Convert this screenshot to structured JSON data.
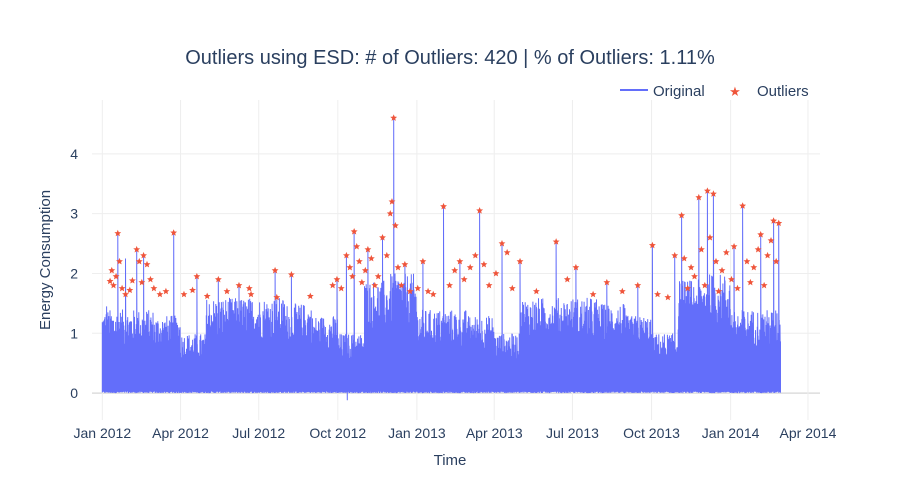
{
  "chart_data": {
    "type": "line",
    "title": "Outliers using ESD: # of Outliers: 420 | % of Outliers: 1.11%",
    "xlabel": "Time",
    "ylabel": "Energy Consumption",
    "x_ticks": [
      "Jan 2012",
      "Apr 2012",
      "Jul 2012",
      "Oct 2012",
      "Jan 2013",
      "Apr 2013",
      "Jul 2013",
      "Oct 2013",
      "Jan 2014",
      "Apr 2014"
    ],
    "x_tick_dates": [
      "2012-01-01",
      "2012-04-01",
      "2012-07-01",
      "2012-10-01",
      "2013-01-01",
      "2013-04-01",
      "2013-07-01",
      "2013-10-01",
      "2014-01-01",
      "2014-04-01"
    ],
    "xlim": [
      "2011-12-20",
      "2014-04-15"
    ],
    "y_ticks": [
      0,
      1,
      2,
      3,
      4
    ],
    "ylim": [
      -0.45,
      4.9
    ],
    "grid": true,
    "legend_position": "top-right",
    "colors": {
      "original": "#636efa",
      "outliers": "#ef553b",
      "text": "#2a3f5f",
      "grid": "#eeeeee"
    },
    "series": [
      {
        "name": "Original",
        "mode": "lines",
        "x_range": [
          "2012-01-01",
          "2014-02-28"
        ],
        "typical_max": [
          1.4,
          1.4,
          1.3,
          1.0,
          1.6,
          1.6,
          1.6,
          1.5,
          1.3,
          1.0,
          1.9,
          2.0
        ],
        "typical_min": 0.0,
        "min_dip": {
          "x": "2012-10-12",
          "y": -0.12
        },
        "peaks": [
          {
            "x": "2012-01-06",
            "y": 1.45
          },
          {
            "x": "2012-01-19",
            "y": 2.67
          },
          {
            "x": "2012-01-28",
            "y": 2.25
          },
          {
            "x": "2012-02-10",
            "y": 2.4
          },
          {
            "x": "2012-02-18",
            "y": 2.3
          },
          {
            "x": "2012-03-24",
            "y": 2.68
          },
          {
            "x": "2012-04-20",
            "y": 1.95
          },
          {
            "x": "2012-05-15",
            "y": 1.9
          },
          {
            "x": "2012-06-08",
            "y": 1.8
          },
          {
            "x": "2012-07-20",
            "y": 2.05
          },
          {
            "x": "2012-08-08",
            "y": 1.98
          },
          {
            "x": "2012-09-30",
            "y": 1.9
          },
          {
            "x": "2012-10-11",
            "y": 2.3
          },
          {
            "x": "2012-10-20",
            "y": 2.7
          },
          {
            "x": "2012-11-05",
            "y": 2.4
          },
          {
            "x": "2012-11-22",
            "y": 2.6
          },
          {
            "x": "2012-12-05",
            "y": 4.6
          },
          {
            "x": "2012-12-18",
            "y": 2.15
          },
          {
            "x": "2013-01-08",
            "y": 2.2
          },
          {
            "x": "2013-02-01",
            "y": 3.12
          },
          {
            "x": "2013-02-20",
            "y": 2.2
          },
          {
            "x": "2013-03-15",
            "y": 3.05
          },
          {
            "x": "2013-04-10",
            "y": 2.5
          },
          {
            "x": "2013-05-01",
            "y": 2.2
          },
          {
            "x": "2013-06-12",
            "y": 2.53
          },
          {
            "x": "2013-07-05",
            "y": 2.1
          },
          {
            "x": "2013-08-10",
            "y": 1.85
          },
          {
            "x": "2013-09-15",
            "y": 1.8
          },
          {
            "x": "2013-10-02",
            "y": 2.47
          },
          {
            "x": "2013-10-28",
            "y": 2.3
          },
          {
            "x": "2013-11-05",
            "y": 2.97
          },
          {
            "x": "2013-11-25",
            "y": 3.27
          },
          {
            "x": "2013-12-05",
            "y": 3.38
          },
          {
            "x": "2013-12-12",
            "y": 3.33
          },
          {
            "x": "2014-01-05",
            "y": 2.45
          },
          {
            "x": "2014-01-15",
            "y": 3.13
          },
          {
            "x": "2014-02-05",
            "y": 2.65
          },
          {
            "x": "2014-02-20",
            "y": 2.88
          },
          {
            "x": "2014-02-26",
            "y": 2.84
          }
        ]
      },
      {
        "name": "Outliers",
        "mode": "markers",
        "marker": "star",
        "points": [
          {
            "x": "2012-01-10",
            "y": 1.87
          },
          {
            "x": "2012-01-12",
            "y": 2.05
          },
          {
            "x": "2012-01-14",
            "y": 1.8
          },
          {
            "x": "2012-01-17",
            "y": 1.95
          },
          {
            "x": "2012-01-19",
            "y": 2.67
          },
          {
            "x": "2012-01-21",
            "y": 2.2
          },
          {
            "x": "2012-01-24",
            "y": 1.75
          },
          {
            "x": "2012-01-28",
            "y": 1.65
          },
          {
            "x": "2012-02-02",
            "y": 1.72
          },
          {
            "x": "2012-02-05",
            "y": 1.88
          },
          {
            "x": "2012-02-10",
            "y": 2.4
          },
          {
            "x": "2012-02-13",
            "y": 2.2
          },
          {
            "x": "2012-02-16",
            "y": 1.85
          },
          {
            "x": "2012-02-18",
            "y": 2.3
          },
          {
            "x": "2012-02-22",
            "y": 2.15
          },
          {
            "x": "2012-02-26",
            "y": 1.9
          },
          {
            "x": "2012-03-01",
            "y": 1.75
          },
          {
            "x": "2012-03-08",
            "y": 1.65
          },
          {
            "x": "2012-03-15",
            "y": 1.7
          },
          {
            "x": "2012-03-24",
            "y": 2.68
          },
          {
            "x": "2012-04-05",
            "y": 1.65
          },
          {
            "x": "2012-04-15",
            "y": 1.72
          },
          {
            "x": "2012-04-20",
            "y": 1.95
          },
          {
            "x": "2012-05-02",
            "y": 1.62
          },
          {
            "x": "2012-05-15",
            "y": 1.9
          },
          {
            "x": "2012-05-25",
            "y": 1.7
          },
          {
            "x": "2012-06-08",
            "y": 1.8
          },
          {
            "x": "2012-06-20",
            "y": 1.75
          },
          {
            "x": "2012-06-22",
            "y": 1.65
          },
          {
            "x": "2012-07-20",
            "y": 2.05
          },
          {
            "x": "2012-07-22",
            "y": 1.6
          },
          {
            "x": "2012-08-08",
            "y": 1.98
          },
          {
            "x": "2012-08-30",
            "y": 1.62
          },
          {
            "x": "2012-09-25",
            "y": 1.8
          },
          {
            "x": "2012-09-30",
            "y": 1.9
          },
          {
            "x": "2012-10-05",
            "y": 1.75
          },
          {
            "x": "2012-10-11",
            "y": 2.3
          },
          {
            "x": "2012-10-15",
            "y": 2.1
          },
          {
            "x": "2012-10-18",
            "y": 1.95
          },
          {
            "x": "2012-10-20",
            "y": 2.7
          },
          {
            "x": "2012-10-23",
            "y": 2.45
          },
          {
            "x": "2012-10-26",
            "y": 2.2
          },
          {
            "x": "2012-10-29",
            "y": 1.85
          },
          {
            "x": "2012-11-02",
            "y": 2.05
          },
          {
            "x": "2012-11-05",
            "y": 2.4
          },
          {
            "x": "2012-11-09",
            "y": 2.25
          },
          {
            "x": "2012-11-13",
            "y": 1.8
          },
          {
            "x": "2012-11-17",
            "y": 1.95
          },
          {
            "x": "2012-11-22",
            "y": 2.6
          },
          {
            "x": "2012-11-27",
            "y": 2.3
          },
          {
            "x": "2012-12-01",
            "y": 3.0
          },
          {
            "x": "2012-12-03",
            "y": 3.2
          },
          {
            "x": "2012-12-05",
            "y": 4.6
          },
          {
            "x": "2012-12-07",
            "y": 2.8
          },
          {
            "x": "2012-12-10",
            "y": 2.1
          },
          {
            "x": "2012-12-14",
            "y": 1.8
          },
          {
            "x": "2012-12-18",
            "y": 2.15
          },
          {
            "x": "2012-12-24",
            "y": 1.7
          },
          {
            "x": "2013-01-02",
            "y": 1.75
          },
          {
            "x": "2013-01-08",
            "y": 2.2
          },
          {
            "x": "2013-01-14",
            "y": 1.7
          },
          {
            "x": "2013-01-20",
            "y": 1.65
          },
          {
            "x": "2013-02-01",
            "y": 3.12
          },
          {
            "x": "2013-02-08",
            "y": 1.8
          },
          {
            "x": "2013-02-14",
            "y": 2.05
          },
          {
            "x": "2013-02-20",
            "y": 2.2
          },
          {
            "x": "2013-02-25",
            "y": 1.9
          },
          {
            "x": "2013-03-04",
            "y": 2.1
          },
          {
            "x": "2013-03-10",
            "y": 2.3
          },
          {
            "x": "2013-03-15",
            "y": 3.05
          },
          {
            "x": "2013-03-20",
            "y": 2.15
          },
          {
            "x": "2013-03-26",
            "y": 1.8
          },
          {
            "x": "2013-04-03",
            "y": 2.0
          },
          {
            "x": "2013-04-10",
            "y": 2.5
          },
          {
            "x": "2013-04-16",
            "y": 2.35
          },
          {
            "x": "2013-04-22",
            "y": 1.75
          },
          {
            "x": "2013-05-01",
            "y": 2.2
          },
          {
            "x": "2013-05-20",
            "y": 1.7
          },
          {
            "x": "2013-06-12",
            "y": 2.53
          },
          {
            "x": "2013-06-25",
            "y": 1.9
          },
          {
            "x": "2013-07-05",
            "y": 2.1
          },
          {
            "x": "2013-07-25",
            "y": 1.65
          },
          {
            "x": "2013-08-10",
            "y": 1.85
          },
          {
            "x": "2013-08-28",
            "y": 1.7
          },
          {
            "x": "2013-09-15",
            "y": 1.8
          },
          {
            "x": "2013-10-02",
            "y": 2.47
          },
          {
            "x": "2013-10-08",
            "y": 1.65
          },
          {
            "x": "2013-10-20",
            "y": 1.6
          },
          {
            "x": "2013-10-28",
            "y": 2.3
          },
          {
            "x": "2013-11-05",
            "y": 2.97
          },
          {
            "x": "2013-11-08",
            "y": 2.25
          },
          {
            "x": "2013-11-12",
            "y": 1.75
          },
          {
            "x": "2013-11-16",
            "y": 2.1
          },
          {
            "x": "2013-11-20",
            "y": 1.95
          },
          {
            "x": "2013-11-25",
            "y": 3.27
          },
          {
            "x": "2013-11-28",
            "y": 2.4
          },
          {
            "x": "2013-12-02",
            "y": 1.8
          },
          {
            "x": "2013-12-05",
            "y": 3.38
          },
          {
            "x": "2013-12-08",
            "y": 2.6
          },
          {
            "x": "2013-12-12",
            "y": 3.33
          },
          {
            "x": "2013-12-15",
            "y": 2.2
          },
          {
            "x": "2013-12-18",
            "y": 1.7
          },
          {
            "x": "2013-12-22",
            "y": 2.05
          },
          {
            "x": "2013-12-27",
            "y": 2.35
          },
          {
            "x": "2014-01-02",
            "y": 1.9
          },
          {
            "x": "2014-01-05",
            "y": 2.45
          },
          {
            "x": "2014-01-09",
            "y": 1.75
          },
          {
            "x": "2014-01-15",
            "y": 3.13
          },
          {
            "x": "2014-01-20",
            "y": 2.2
          },
          {
            "x": "2014-01-24",
            "y": 1.85
          },
          {
            "x": "2014-01-28",
            "y": 2.1
          },
          {
            "x": "2014-02-02",
            "y": 2.4
          },
          {
            "x": "2014-02-05",
            "y": 2.65
          },
          {
            "x": "2014-02-09",
            "y": 1.8
          },
          {
            "x": "2014-02-13",
            "y": 2.3
          },
          {
            "x": "2014-02-17",
            "y": 2.55
          },
          {
            "x": "2014-02-20",
            "y": 2.88
          },
          {
            "x": "2014-02-23",
            "y": 2.2
          },
          {
            "x": "2014-02-26",
            "y": 2.84
          }
        ]
      }
    ]
  }
}
